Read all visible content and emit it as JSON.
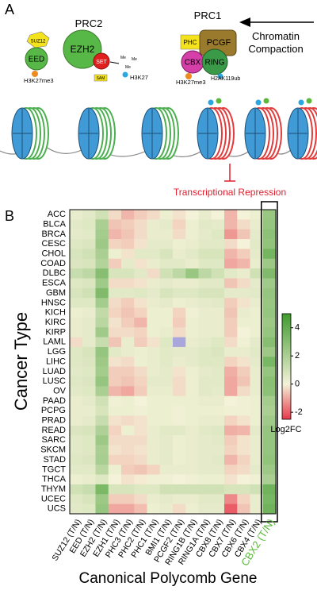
{
  "panel_a": {
    "label": "A",
    "prc2": "PRC2",
    "suz12": "SUZ12",
    "eed": "EED",
    "ezh2": "EZH2",
    "set": "SET",
    "sam": "SAM",
    "h3k27me3_left": "H3K27me3",
    "me": [
      "Me",
      "Me",
      "Me"
    ],
    "h3k27": "H3K27",
    "prc1": "PRC1",
    "phc": "PHC",
    "pcgf": "PCGF",
    "cbx": "CBX",
    "ring": "RING",
    "h3k27me3_right": "H3K27me3",
    "h2ak119ub": "H2AK119ub",
    "compaction": [
      "Chromatin",
      "Compaction"
    ],
    "repression": "Transcriptional Repression"
  },
  "chart_data": {
    "type": "heatmap",
    "panel_label": "B",
    "y_label": "Cancer Type",
    "x_label": "Canonical Polycomb Gene",
    "x": [
      "SUZ12 (T/N)",
      "EED (T/N)",
      "EZH2 (T/N)",
      "EZH1 (T/N)",
      "PHC3 (T/N)",
      "PHC2 (T/N)",
      "PHC1 (T/N)",
      "BMI1 (T/N)",
      "PCGF2 (T/N)",
      "RING1B (T/N)",
      "RING1A (T/N)",
      "CBX8 (T/N)",
      "CBX7 (T/N)",
      "CBX6 (T/N)",
      "CBX4 (T/N)",
      "CBX2 (T/N)"
    ],
    "y": [
      "ACC",
      "BLCA",
      "BRCA",
      "CESC",
      "CHOL",
      "COAD",
      "DLBC",
      "ESCA",
      "GBM",
      "HNSC",
      "KICH",
      "KIRC",
      "KIRP",
      "LAML",
      "LGG",
      "LIHC",
      "LUAD",
      "LUSC",
      "OV",
      "PAAD",
      "PCPG",
      "PRAD",
      "READ",
      "SARC",
      "SKCM",
      "STAD",
      "TGCT",
      "THCA",
      "THYM",
      "UCEC",
      "UCS"
    ],
    "values": [
      [
        0.3,
        0.5,
        1,
        -0.3,
        -0.8,
        -0.5,
        -0.3,
        0.2,
        -0.2,
        0,
        0.3,
        0,
        -0.8,
        0,
        0.2,
        2.5
      ],
      [
        0.5,
        0.6,
        2,
        -0.6,
        -0.5,
        -0.3,
        0.3,
        0.4,
        -0.4,
        0.2,
        0.5,
        0.4,
        -0.8,
        -0.3,
        0.3,
        2.6
      ],
      [
        0.4,
        0.5,
        2.2,
        -0.8,
        -0.6,
        -0.3,
        0.3,
        0.3,
        -0.3,
        0.2,
        0.4,
        0.6,
        -1.2,
        -0.6,
        0.4,
        2.8
      ],
      [
        0.6,
        0.7,
        2.4,
        -0.4,
        -0.5,
        -0.2,
        0.4,
        0.4,
        0.2,
        0.3,
        0.5,
        0.5,
        -0.3,
        0,
        0.5,
        2.7
      ],
      [
        0.8,
        1,
        2,
        0.2,
        -0.2,
        0.5,
        0.5,
        0.8,
        0.3,
        0.5,
        0.8,
        0.8,
        -0.8,
        -0.5,
        0.4,
        3.5
      ],
      [
        0.7,
        0.8,
        1.8,
        -0.5,
        0.4,
        -0.2,
        0.3,
        0.5,
        0.5,
        0.3,
        0.6,
        0.6,
        -1,
        -0.8,
        0.3,
        2.4
      ],
      [
        1.2,
        1.5,
        3,
        0.8,
        0.8,
        0.5,
        -0.3,
        1,
        1.5,
        2.5,
        1.5,
        1,
        0.5,
        0.3,
        1,
        3.2
      ],
      [
        0.6,
        0.7,
        2.3,
        -0.3,
        -0.3,
        -0.2,
        0.3,
        0.4,
        0.3,
        0.3,
        0.5,
        0.5,
        -0.6,
        -0.3,
        0.4,
        2.3
      ],
      [
        0.8,
        1,
        3.2,
        0.5,
        0.5,
        0.6,
        0.4,
        0.8,
        0.6,
        0.6,
        0.8,
        0.8,
        0.4,
        0.4,
        0.5,
        2.6
      ],
      [
        0.6,
        0.6,
        2.2,
        -0.3,
        -0.5,
        -0.2,
        0.3,
        0.4,
        0.2,
        0.3,
        0.4,
        0.5,
        -0.5,
        -0.2,
        0.3,
        2.5
      ],
      [
        0.2,
        0.3,
        1.4,
        -0.4,
        -0.6,
        -0.4,
        0.2,
        0.2,
        -0.4,
        0.1,
        0.3,
        0.3,
        -0.6,
        0.3,
        0.2,
        2.6
      ],
      [
        0.3,
        0.4,
        1.6,
        -0.2,
        -0.5,
        -0.8,
        0.2,
        0.2,
        -0.5,
        0.2,
        0.3,
        0.3,
        -0.5,
        0.2,
        0.2,
        2.4
      ],
      [
        0.3,
        0.4,
        2.3,
        -0.3,
        -0.3,
        -0.4,
        0.2,
        0.3,
        -0.3,
        0.2,
        0.3,
        0.3,
        -0.5,
        0,
        0.2,
        2.6
      ],
      [
        -0.3,
        0.4,
        1.2,
        -0.6,
        0.3,
        -0.5,
        -0.2,
        0.6,
        null,
        0.3,
        0.4,
        0.6,
        -0.3,
        0.1,
        0.4,
        3
      ],
      [
        0.6,
        0.8,
        2.6,
        0.5,
        0.3,
        0.2,
        0.3,
        0.5,
        0.4,
        0.4,
        0.6,
        0.7,
        0.3,
        0.3,
        0.5,
        2.4
      ],
      [
        0.6,
        0.7,
        2.4,
        -0.2,
        -0.3,
        0.2,
        0.3,
        0.5,
        0.3,
        0.4,
        0.6,
        0.6,
        -0.4,
        -0.2,
        0.4,
        3.4
      ],
      [
        0.5,
        0.6,
        2.2,
        -0.5,
        -0.5,
        -0.3,
        0.3,
        0.4,
        -0.2,
        0.2,
        0.4,
        0.5,
        -0.9,
        -0.5,
        0.3,
        2.6
      ],
      [
        0.6,
        0.7,
        2.6,
        -0.5,
        -0.6,
        -0.4,
        0.4,
        0.4,
        -0.3,
        0.2,
        0.5,
        0.5,
        -1,
        -0.6,
        0.3,
        2.9
      ],
      [
        0.5,
        0.6,
        2,
        -0.8,
        -1,
        -0.5,
        0.3,
        0.3,
        -0.3,
        0.2,
        0.5,
        0.4,
        -1,
        -0.3,
        0.3,
        2.8
      ],
      [
        0.3,
        0.4,
        1,
        0.1,
        0.2,
        0,
        0.2,
        0.2,
        0.2,
        0.2,
        0.3,
        0.3,
        0,
        0.1,
        0.2,
        2.2
      ],
      [
        0.3,
        0.3,
        0.8,
        0.2,
        0.2,
        0.1,
        0.2,
        0.2,
        0.1,
        0.2,
        0.2,
        0.2,
        0.1,
        0.1,
        0.2,
        2
      ],
      [
        0.3,
        0.4,
        1.2,
        -0.2,
        -0.3,
        -0.2,
        0.2,
        0.2,
        0.1,
        0.2,
        0.3,
        0.3,
        -0.4,
        -0.2,
        0.2,
        2.3
      ],
      [
        0.7,
        0.8,
        1.9,
        -0.4,
        0.2,
        -0.2,
        0.3,
        0.5,
        0.5,
        0.3,
        0.5,
        0.6,
        -0.9,
        -0.8,
        0.4,
        2.6
      ],
      [
        0.5,
        0.6,
        2.4,
        -0.3,
        -0.3,
        -0.3,
        0.3,
        0.4,
        0.2,
        0.3,
        0.4,
        0.5,
        -0.5,
        -0.2,
        0.3,
        2.6
      ],
      [
        0.5,
        0.6,
        2,
        -0.2,
        -0.3,
        -0.2,
        0.3,
        0.4,
        0.2,
        0.3,
        0.4,
        0.4,
        -0.4,
        -0.2,
        0.3,
        2.6
      ],
      [
        0.6,
        0.7,
        2.1,
        -0.4,
        -0.4,
        -0.3,
        0.3,
        0.4,
        0.2,
        0.3,
        0.4,
        0.5,
        -0.8,
        -0.4,
        0.3,
        2.7
      ],
      [
        0.5,
        0.5,
        1.6,
        0.2,
        -0.5,
        -0.6,
        -0.4,
        0.3,
        0.3,
        0.3,
        0.4,
        0.4,
        -0.4,
        -0.3,
        0.4,
        2.4
      ],
      [
        0.2,
        0.3,
        0.6,
        0,
        -0.2,
        -0.1,
        0.1,
        0.1,
        0,
        0.1,
        0.2,
        0.2,
        -0.2,
        0,
        0.1,
        2
      ],
      [
        1,
        1.2,
        3.3,
        0.8,
        0.8,
        0.6,
        0.6,
        1,
        1,
        1,
        1,
        1,
        0.8,
        0.8,
        1,
        3.6
      ],
      [
        0.6,
        0.8,
        2.4,
        -0.5,
        -0.5,
        -0.3,
        0.3,
        0.4,
        0.3,
        0.3,
        0.5,
        0.5,
        -1.4,
        -0.4,
        0.3,
        3.4
      ],
      [
        0.5,
        0.6,
        2.6,
        -1,
        -1,
        -0.7,
        0.2,
        0.3,
        -0.3,
        0.2,
        0.4,
        0.4,
        -2,
        -0.6,
        0.3,
        3.6
      ]
    ],
    "missing_color": "#a9a6dc",
    "highlight_column": "CBX2 (T/N)",
    "highlight_color": "#5cb83c",
    "colorbar": {
      "lim": [
        -2.5,
        5
      ],
      "ticks": [
        -2,
        0,
        2,
        4
      ],
      "label": "Log2FC",
      "colors": [
        "#e8374a",
        "#f4f2d8",
        "#3e9b2c"
      ]
    }
  }
}
